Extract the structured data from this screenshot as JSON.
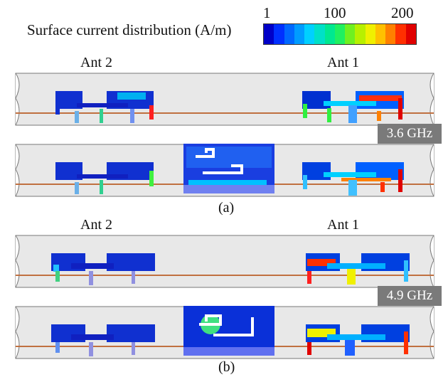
{
  "legend": {
    "title": "Surface current distribution (A/m)",
    "ticks": [
      "1",
      "100",
      "200"
    ],
    "colors": [
      "#0000c8",
      "#0030ff",
      "#0068ff",
      "#009cff",
      "#00d0ff",
      "#00e0c8",
      "#00e890",
      "#20f060",
      "#70f020",
      "#b8f000",
      "#f0f000",
      "#ffc000",
      "#ff8000",
      "#ff3000",
      "#e00000"
    ]
  },
  "panels": [
    {
      "ant_left": "Ant 2",
      "ant_right": "Ant 1",
      "freq": "3.6 GHz",
      "caption": "(a)"
    },
    {
      "ant_left": "Ant 2",
      "ant_right": "Ant 1",
      "freq": "4.9 GHz",
      "caption": "(b)"
    }
  ]
}
